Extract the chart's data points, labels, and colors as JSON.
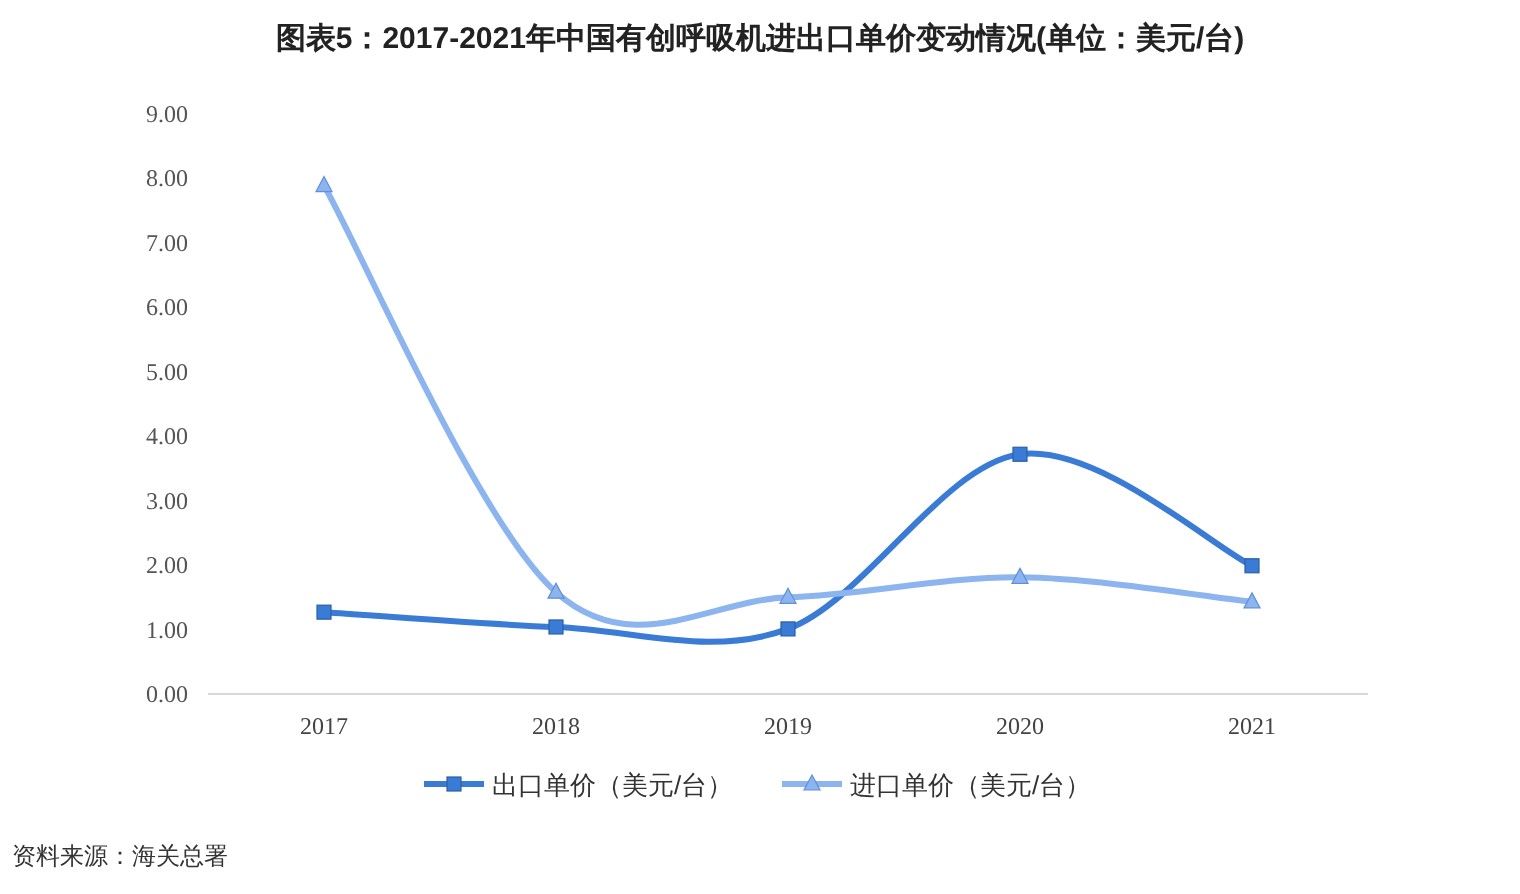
{
  "chart_data": {
    "type": "line",
    "title": "图表5：2017-2021年中国有创呼吸机进出口单价变动情况(单位：美元/台)",
    "categories": [
      "2017",
      "2018",
      "2019",
      "2020",
      "2021"
    ],
    "series": [
      {
        "name": "出口单价（美元/台）",
        "color": "#3a7bd5",
        "marker": "square",
        "values": [
          1.27,
          1.04,
          1.01,
          3.72,
          1.99
        ]
      },
      {
        "name": "进口单价（美元/台）",
        "color": "#8cb4ee",
        "marker": "triangle",
        "values": [
          7.89,
          1.58,
          1.5,
          1.81,
          1.43
        ]
      }
    ],
    "ylim": [
      0,
      9
    ],
    "yticks": [
      {
        "value": 0,
        "label": "0.00"
      },
      {
        "value": 1,
        "label": "1.00"
      },
      {
        "value": 2,
        "label": "2.00"
      },
      {
        "value": 3,
        "label": "3.00"
      },
      {
        "value": 4,
        "label": "4.00"
      },
      {
        "value": 5,
        "label": "5.00"
      },
      {
        "value": 6,
        "label": "6.00"
      },
      {
        "value": 7,
        "label": "7.00"
      },
      {
        "value": 8,
        "label": "8.00"
      },
      {
        "value": 9,
        "label": "9.00"
      }
    ],
    "grid": false,
    "legend": "bottom",
    "annotations": [
      "资料来源：海关总署"
    ]
  }
}
